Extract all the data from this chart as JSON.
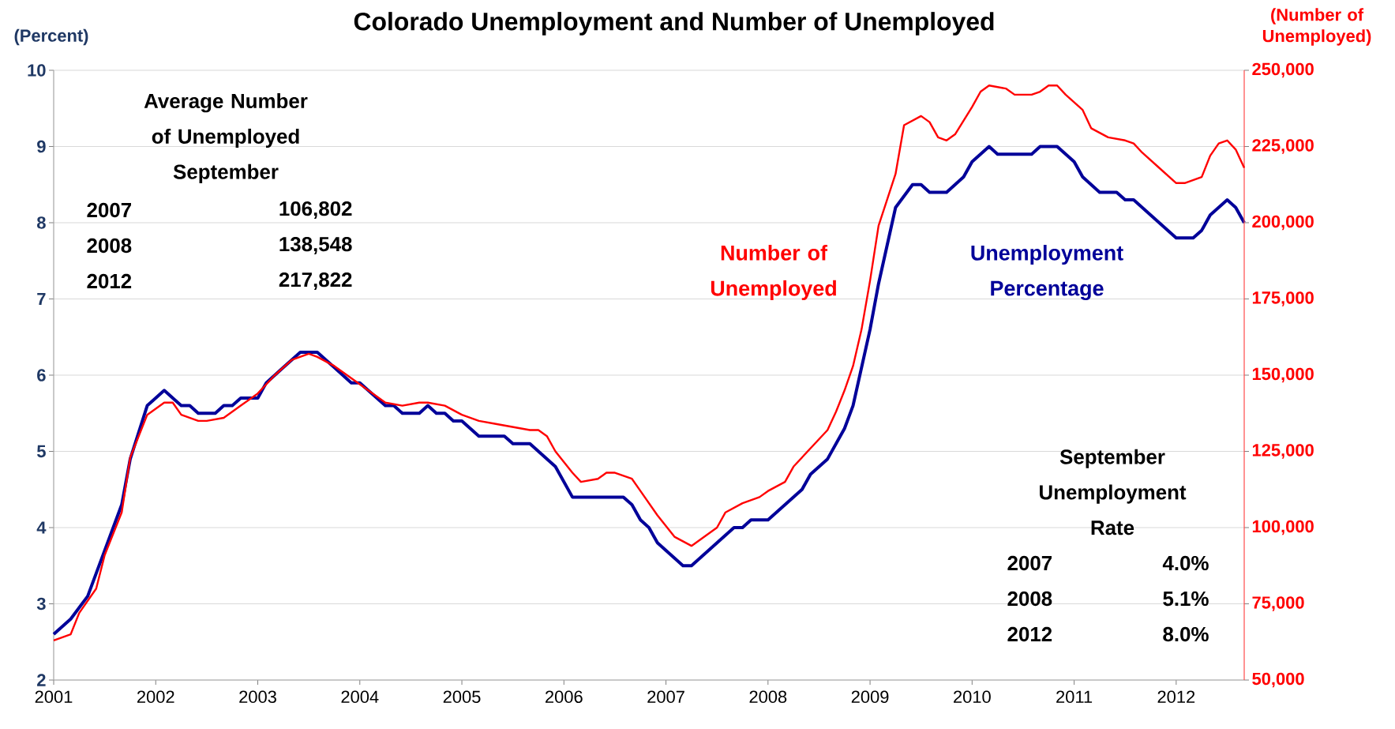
{
  "chart_data": {
    "type": "line",
    "title": "Colorado Unemployment and Number of Unemployed",
    "ylabel": "(Percent)",
    "y2label": "(Number of Unemployed)",
    "xlim": [
      "2001-01",
      "2012-09"
    ],
    "xticks": [
      {
        "value": "2001-01",
        "label": "2001"
      },
      {
        "value": "2002-01",
        "label": "2002"
      },
      {
        "value": "2003-01",
        "label": "2003"
      },
      {
        "value": "2004-01",
        "label": "2004"
      },
      {
        "value": "2005-01",
        "label": "2005"
      },
      {
        "value": "2006-01",
        "label": "2006"
      },
      {
        "value": "2007-01",
        "label": "2007"
      },
      {
        "value": "2008-01",
        "label": "2008"
      },
      {
        "value": "2009-01",
        "label": "2009"
      },
      {
        "value": "2010-01",
        "label": "2010"
      },
      {
        "value": "2011-01",
        "label": "2011"
      },
      {
        "value": "2012-01",
        "label": "2012"
      }
    ],
    "ylim": [
      2,
      10
    ],
    "yticks": [
      2,
      3,
      4,
      5,
      6,
      7,
      8,
      9,
      10
    ],
    "y2lim": [
      50000,
      250000
    ],
    "y2ticks": [
      {
        "value": 50000,
        "label": "50,000"
      },
      {
        "value": 75000,
        "label": "75,000"
      },
      {
        "value": 100000,
        "label": "100,000"
      },
      {
        "value": 125000,
        "label": "125,000"
      },
      {
        "value": 150000,
        "label": "150,000"
      },
      {
        "value": 175000,
        "label": "175,000"
      },
      {
        "value": 200000,
        "label": "200,000"
      },
      {
        "value": 225000,
        "label": "225,000"
      },
      {
        "value": 250000,
        "label": "250,000"
      }
    ],
    "grid": "y",
    "series": [
      {
        "name": "Unemployment Percentage",
        "color": "#000099",
        "axis": "y",
        "x": [
          "2001-01",
          "2001-03",
          "2001-05",
          "2001-06",
          "2001-07",
          "2001-09",
          "2001-10",
          "2001-12",
          "2002-02",
          "2002-04",
          "2002-05",
          "2002-06",
          "2002-08",
          "2002-09",
          "2002-10",
          "2002-11",
          "2003-01",
          "2003-02",
          "2003-04",
          "2003-06",
          "2003-08",
          "2003-10",
          "2003-12",
          "2004-01",
          "2004-04",
          "2004-05",
          "2004-06",
          "2004-08",
          "2004-09",
          "2004-10",
          "2004-11",
          "2004-12",
          "2005-01",
          "2005-03",
          "2005-06",
          "2005-07",
          "2005-09",
          "2005-12",
          "2006-02",
          "2006-08",
          "2006-09",
          "2006-10",
          "2006-11",
          "2006-12",
          "2007-03",
          "2007-04",
          "2007-09",
          "2007-10",
          "2007-11",
          "2008-01",
          "2008-05",
          "2008-06",
          "2008-08",
          "2008-10",
          "2008-11",
          "2009-01",
          "2009-02",
          "2009-04",
          "2009-06",
          "2009-07",
          "2009-08",
          "2009-10",
          "2009-12",
          "2010-01",
          "2010-03",
          "2010-04",
          "2010-08",
          "2010-09",
          "2010-11",
          "2011-01",
          "2011-02",
          "2011-04",
          "2011-06",
          "2011-07",
          "2011-08",
          "2012-01",
          "2012-03",
          "2012-04",
          "2012-05",
          "2012-07",
          "2012-08",
          "2012-09"
        ],
        "values": [
          2.6,
          2.8,
          3.1,
          3.4,
          3.7,
          4.3,
          4.9,
          5.6,
          5.8,
          5.6,
          5.6,
          5.5,
          5.5,
          5.6,
          5.6,
          5.7,
          5.7,
          5.9,
          6.1,
          6.3,
          6.3,
          6.1,
          5.9,
          5.9,
          5.6,
          5.6,
          5.5,
          5.5,
          5.6,
          5.5,
          5.5,
          5.4,
          5.4,
          5.2,
          5.2,
          5.1,
          5.1,
          4.8,
          4.4,
          4.4,
          4.3,
          4.1,
          4.0,
          3.8,
          3.5,
          3.5,
          4.0,
          4.0,
          4.1,
          4.1,
          4.5,
          4.7,
          4.9,
          5.3,
          5.6,
          6.6,
          7.2,
          8.2,
          8.5,
          8.5,
          8.4,
          8.4,
          8.6,
          8.8,
          9.0,
          8.9,
          8.9,
          9.0,
          9.0,
          8.8,
          8.6,
          8.4,
          8.4,
          8.3,
          8.3,
          7.8,
          7.8,
          7.9,
          8.1,
          8.3,
          8.2,
          8.0
        ]
      },
      {
        "name": "Number of Unemployed",
        "color": "#ff0000",
        "axis": "y2",
        "x": [
          "2001-01",
          "2001-03",
          "2001-04",
          "2001-06",
          "2001-07",
          "2001-09",
          "2001-10",
          "2001-12",
          "2002-02",
          "2002-03",
          "2002-04",
          "2002-06",
          "2002-07",
          "2002-09",
          "2002-11",
          "2003-01",
          "2003-03",
          "2003-05",
          "2003-07",
          "2003-08",
          "2003-10",
          "2003-12",
          "2004-02",
          "2004-04",
          "2004-06",
          "2004-08",
          "2004-09",
          "2004-11",
          "2005-01",
          "2005-03",
          "2005-05",
          "2005-09",
          "2005-10",
          "2005-11",
          "2005-12",
          "2006-02",
          "2006-03",
          "2006-05",
          "2006-06",
          "2006-07",
          "2006-09",
          "2006-10",
          "2006-12",
          "2007-02",
          "2007-04",
          "2007-05",
          "2007-07",
          "2007-08",
          "2007-10",
          "2007-12",
          "2008-01",
          "2008-03",
          "2008-04",
          "2008-06",
          "2008-08",
          "2008-09",
          "2008-10",
          "2008-11",
          "2008-12",
          "2009-01",
          "2009-02",
          "2009-04",
          "2009-05",
          "2009-07",
          "2009-08",
          "2009-09",
          "2009-10",
          "2009-11",
          "2010-01",
          "2010-02",
          "2010-03",
          "2010-05",
          "2010-06",
          "2010-08",
          "2010-09",
          "2010-10",
          "2010-11",
          "2010-12",
          "2011-02",
          "2011-03",
          "2011-05",
          "2011-07",
          "2011-08",
          "2011-09",
          "2011-11",
          "2012-01",
          "2012-02",
          "2012-04",
          "2012-05",
          "2012-06",
          "2012-07",
          "2012-08",
          "2012-09"
        ],
        "values": [
          63000,
          65000,
          72000,
          80000,
          91000,
          105000,
          123000,
          137000,
          141000,
          141000,
          137000,
          135000,
          135000,
          136000,
          140000,
          144000,
          150000,
          155000,
          157000,
          156000,
          153000,
          149000,
          145000,
          141000,
          140000,
          141000,
          141000,
          140000,
          137000,
          135000,
          134000,
          132000,
          132000,
          130000,
          125000,
          118000,
          115000,
          116000,
          118000,
          118000,
          116000,
          112000,
          104000,
          97000,
          94000,
          96000,
          100000,
          105000,
          108000,
          110000,
          112000,
          115000,
          120000,
          126000,
          132000,
          138000,
          145000,
          153000,
          165000,
          181000,
          199000,
          216000,
          232000,
          235000,
          233000,
          228000,
          227000,
          229000,
          238000,
          243000,
          245000,
          244000,
          242000,
          242000,
          243000,
          245000,
          245000,
          242000,
          237000,
          231000,
          228000,
          227000,
          226000,
          223000,
          218000,
          213000,
          213000,
          215000,
          222000,
          226000,
          227000,
          224000,
          218000
        ]
      }
    ],
    "annotations": [
      "Average Number of Unemployed September",
      "2007",
      "106,802",
      "2008",
      "138,548",
      "2012",
      "217,822",
      "September Unemployment Rate",
      "2007",
      "4.0%",
      "2008",
      "5.1%",
      "2012",
      "8.0%"
    ]
  }
}
